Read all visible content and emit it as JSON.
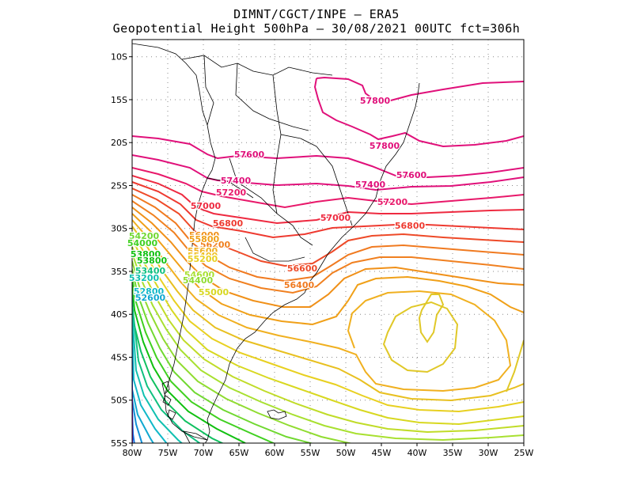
{
  "header": {
    "line1": "DIMNT/CGCT/INPE –  ERA5",
    "line2": "Geopotential Height 500hPa –  30/08/2021 00UTC fct=306h"
  },
  "map": {
    "lon_range": [
      -80,
      -25
    ],
    "lat_range": [
      -55,
      -8
    ],
    "x_ticks": [
      "80W",
      "75W",
      "70W",
      "65W",
      "60W",
      "55W",
      "50W",
      "45W",
      "40W",
      "35W",
      "30W",
      "25W"
    ],
    "y_ticks": [
      "10S",
      "15S",
      "20S",
      "25S",
      "30S",
      "35S",
      "40S",
      "45S",
      "50S",
      "55S"
    ],
    "grid": "dotted",
    "contour_labels": [
      {
        "text": "57800",
        "color": "#e0107a"
      },
      {
        "text": "57800",
        "color": "#e0107a"
      },
      {
        "text": "57600",
        "color": "#e0107a"
      },
      {
        "text": "57600",
        "color": "#e0107a"
      },
      {
        "text": "57400",
        "color": "#e0107a"
      },
      {
        "text": "57400",
        "color": "#e0107a"
      },
      {
        "text": "57200",
        "color": "#e8186a"
      },
      {
        "text": "57200",
        "color": "#e8186a"
      },
      {
        "text": "57000",
        "color": "#ee2a40"
      },
      {
        "text": "57000",
        "color": "#ee2a40"
      },
      {
        "text": "56800",
        "color": "#ee3a30"
      },
      {
        "text": "56800",
        "color": "#ee3a30"
      },
      {
        "text": "56600",
        "color": "#ee4a28"
      },
      {
        "text": "56400",
        "color": "#f07a20"
      },
      {
        "text": "56200",
        "color": "#f08020"
      },
      {
        "text": "56000",
        "color": "#f09018"
      },
      {
        "text": "55800",
        "color": "#f0a018"
      },
      {
        "text": "55600",
        "color": "#f0b020"
      },
      {
        "text": "55400",
        "color": "#f0c020"
      },
      {
        "text": "55200",
        "color": "#e8d020"
      },
      {
        "text": "55000",
        "color": "#d8d820"
      },
      {
        "text": "54600",
        "color": "#a8e030"
      },
      {
        "text": "54400",
        "color": "#90dc30"
      },
      {
        "text": "54200",
        "color": "#70d830"
      },
      {
        "text": "54000",
        "color": "#40d020"
      },
      {
        "text": "53800",
        "color": "#10c010"
      },
      {
        "text": "53800",
        "color": "#10c010"
      },
      {
        "text": "53400",
        "color": "#10c080"
      },
      {
        "text": "53200",
        "color": "#10c0b0"
      },
      {
        "text": "52800",
        "color": "#10b8c8"
      },
      {
        "text": "52600",
        "color": "#10a8d0"
      }
    ],
    "colors": {
      "magenta": "#e0107a",
      "red": "#ee3a30",
      "orange": "#f08020",
      "yellow": "#e0c828",
      "green": "#10c010",
      "cyan": "#10b8c8",
      "blue": "#2050e0",
      "purple": "#8010c0"
    }
  }
}
